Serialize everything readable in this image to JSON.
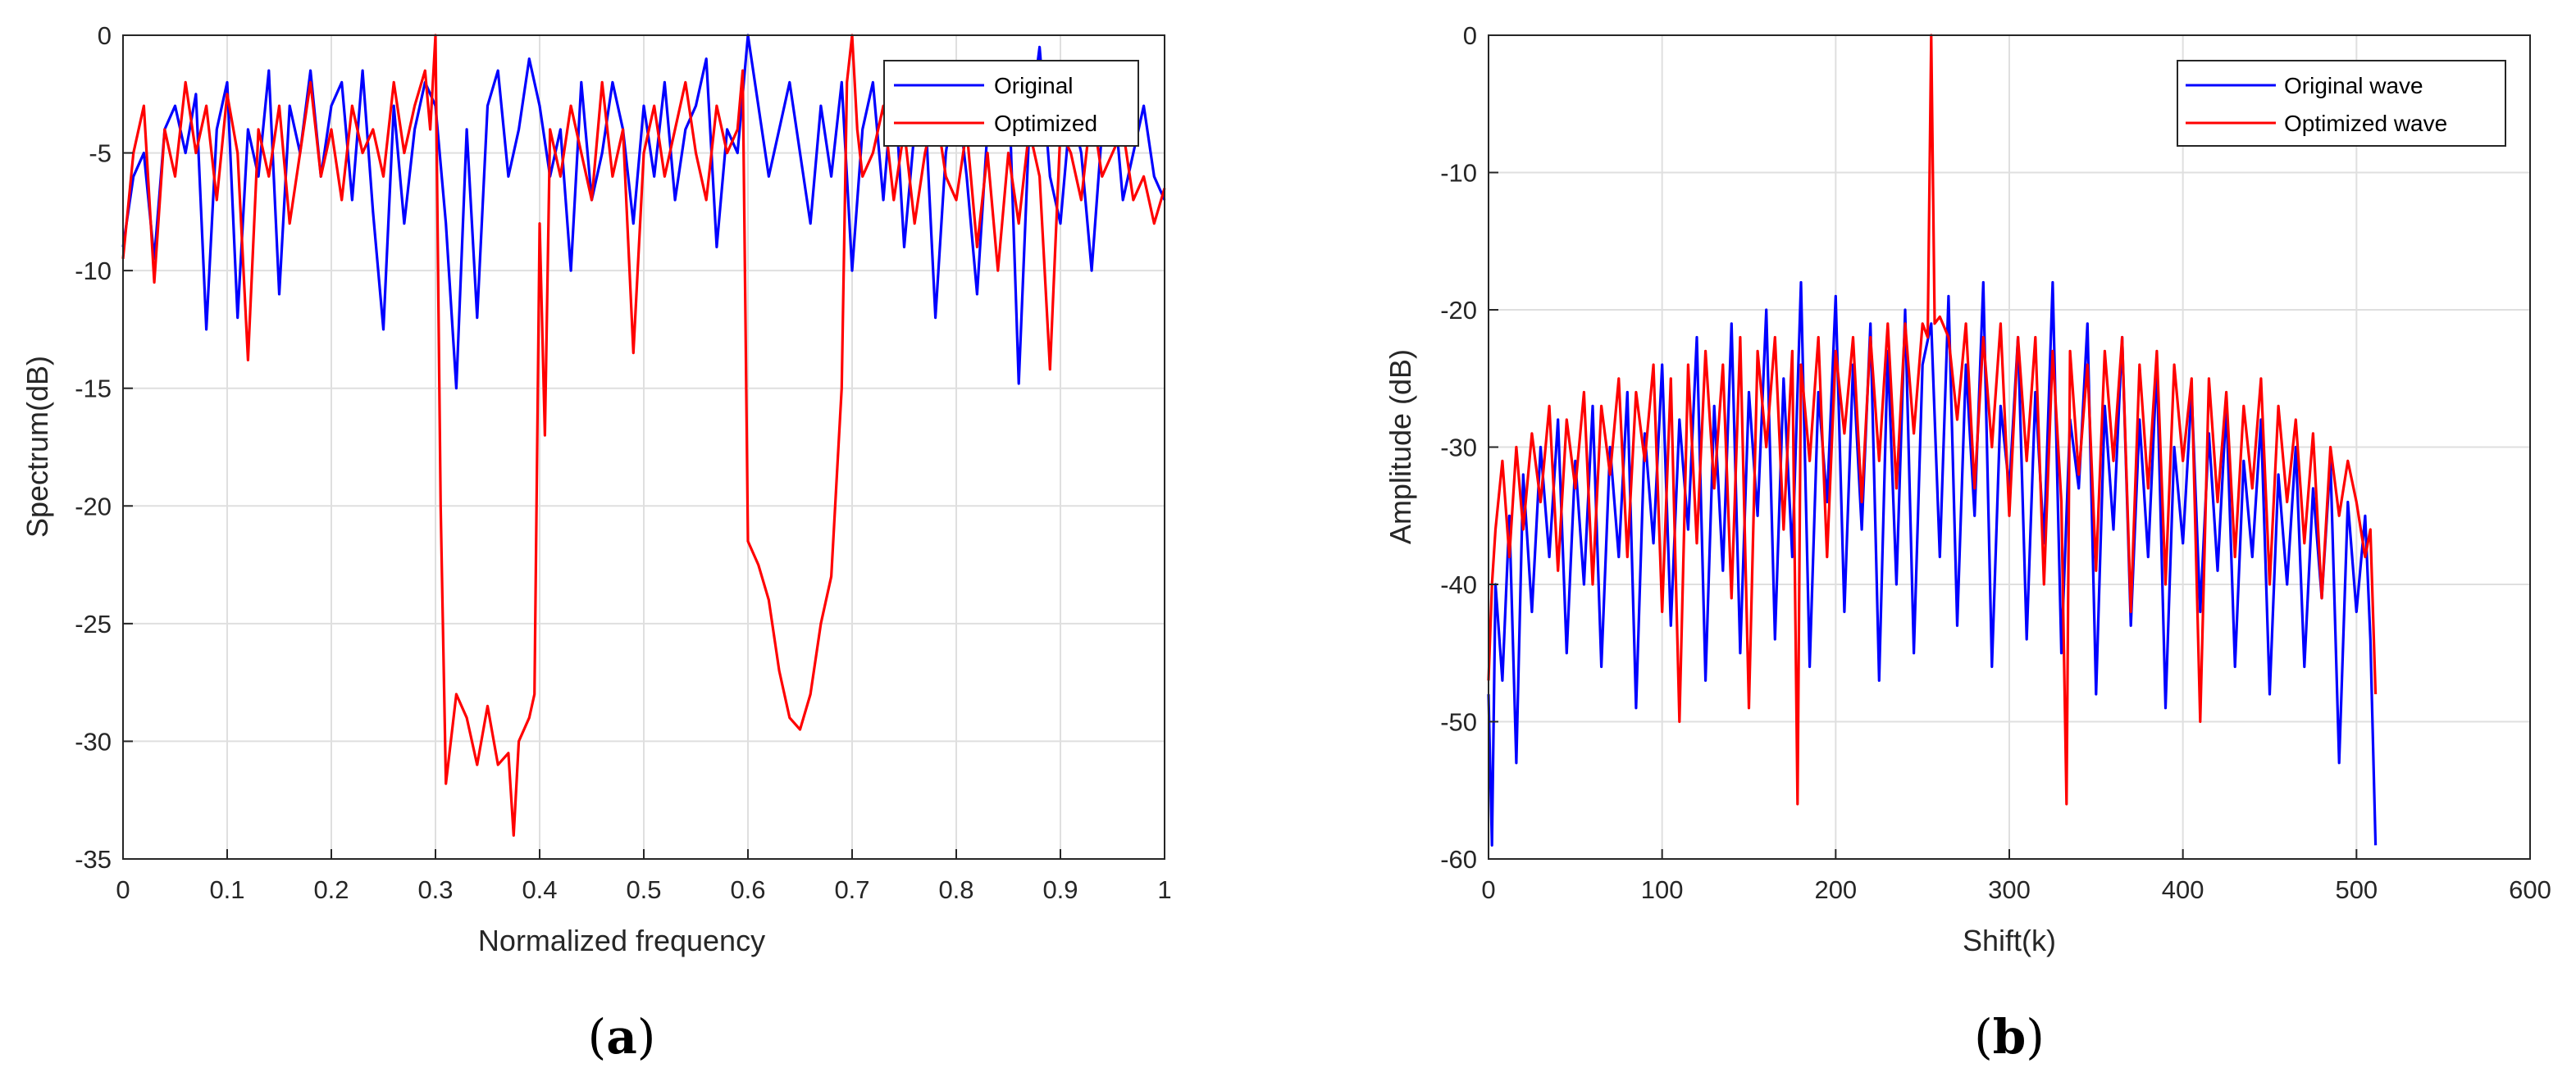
{
  "chart_data": [
    {
      "type": "line",
      "panel_label": "a",
      "caption": {
        "open": "(",
        "letter": "a",
        "close": ")"
      },
      "xlabel": "Normalized frequency",
      "ylabel": "Spectrum(dB)",
      "xlim": [
        0,
        1
      ],
      "ylim": [
        -35,
        0
      ],
      "xticks": [
        0,
        0.1,
        0.2,
        0.3,
        0.4,
        0.5,
        0.6,
        0.7,
        0.8,
        0.9,
        1
      ],
      "xtick_labels": [
        "0",
        "0.1",
        "0.2",
        "0.3",
        "0.4",
        "0.5",
        "0.6",
        "0.7",
        "0.8",
        "0.9",
        "1"
      ],
      "yticks": [
        0,
        -5,
        -10,
        -15,
        -20,
        -25,
        -30,
        -35
      ],
      "ytick_labels": [
        "0",
        "-5",
        "-10",
        "-15",
        "-20",
        "-25",
        "-30",
        "-35"
      ],
      "grid": true,
      "legend": "top-right",
      "series": [
        {
          "name": "Original",
          "color": "#0000ff",
          "x": [
            0,
            0.01,
            0.02,
            0.03,
            0.04,
            0.05,
            0.06,
            0.07,
            0.08,
            0.09,
            0.1,
            0.11,
            0.12,
            0.13,
            0.14,
            0.15,
            0.16,
            0.17,
            0.18,
            0.19,
            0.2,
            0.21,
            0.22,
            0.23,
            0.24,
            0.25,
            0.26,
            0.27,
            0.28,
            0.29,
            0.3,
            0.31,
            0.32,
            0.33,
            0.34,
            0.35,
            0.36,
            0.37,
            0.38,
            0.39,
            0.4,
            0.41,
            0.42,
            0.43,
            0.44,
            0.45,
            0.46,
            0.47,
            0.48,
            0.49,
            0.5,
            0.51,
            0.52,
            0.53,
            0.54,
            0.55,
            0.56,
            0.57,
            0.58,
            0.59,
            0.6,
            0.61,
            0.62,
            0.63,
            0.64,
            0.65,
            0.66,
            0.67,
            0.68,
            0.69,
            0.7,
            0.71,
            0.72,
            0.73,
            0.74,
            0.75,
            0.76,
            0.77,
            0.78,
            0.79,
            0.8,
            0.81,
            0.82,
            0.83,
            0.84,
            0.85,
            0.86,
            0.87,
            0.88,
            0.89,
            0.9,
            0.91,
            0.92,
            0.93,
            0.94,
            0.95,
            0.96,
            0.97,
            0.98,
            0.99,
            1
          ],
          "y": [
            -9,
            -6,
            -5,
            -9.5,
            -4,
            -3,
            -5,
            -2.5,
            -12.5,
            -4,
            -2,
            -12,
            -4,
            -6,
            -1.5,
            -11,
            -3,
            -5,
            -1.5,
            -6,
            -3,
            -2,
            -7,
            -1.5,
            -7.5,
            -12.5,
            -3,
            -8,
            -4,
            -2,
            -3,
            -8,
            -15,
            -4,
            -12,
            -3,
            -1.5,
            -6,
            -4,
            -1,
            -3,
            -6,
            -4,
            -10,
            -2,
            -7,
            -5,
            -2,
            -4,
            -8,
            -3,
            -6,
            -2,
            -7,
            -4,
            -3,
            -1,
            -9,
            -4,
            -5,
            0,
            -3,
            -6,
            -4,
            -2,
            -5,
            -8,
            -3,
            -6,
            -2,
            -10,
            -4,
            -2,
            -7,
            -1.5,
            -9,
            -4,
            -3,
            -12,
            -5,
            -2,
            -6,
            -11,
            -4,
            -3,
            -1.5,
            -14.8,
            -4,
            -0.5,
            -6,
            -8,
            -3,
            -5,
            -10,
            -4,
            -2,
            -7,
            -5,
            -3,
            -6,
            -7
          ]
        },
        {
          "name": "Optimized",
          "color": "#ff0000",
          "x": [
            0,
            0.01,
            0.02,
            0.03,
            0.04,
            0.05,
            0.06,
            0.07,
            0.08,
            0.09,
            0.1,
            0.11,
            0.12,
            0.13,
            0.14,
            0.15,
            0.16,
            0.17,
            0.18,
            0.19,
            0.2,
            0.21,
            0.22,
            0.23,
            0.24,
            0.25,
            0.26,
            0.27,
            0.28,
            0.29,
            0.295,
            0.3,
            0.305,
            0.31,
            0.32,
            0.33,
            0.34,
            0.35,
            0.36,
            0.37,
            0.375,
            0.38,
            0.39,
            0.395,
            0.4,
            0.405,
            0.41,
            0.42,
            0.43,
            0.44,
            0.45,
            0.46,
            0.47,
            0.48,
            0.49,
            0.5,
            0.51,
            0.52,
            0.53,
            0.54,
            0.55,
            0.56,
            0.57,
            0.58,
            0.59,
            0.595,
            0.6,
            0.61,
            0.62,
            0.63,
            0.64,
            0.65,
            0.66,
            0.67,
            0.68,
            0.69,
            0.695,
            0.7,
            0.705,
            0.71,
            0.72,
            0.73,
            0.74,
            0.75,
            0.76,
            0.77,
            0.78,
            0.79,
            0.8,
            0.81,
            0.82,
            0.83,
            0.84,
            0.85,
            0.86,
            0.87,
            0.88,
            0.89,
            0.9,
            0.91,
            0.92,
            0.93,
            0.94,
            0.95,
            0.96,
            0.97,
            0.98,
            0.99,
            1
          ],
          "y": [
            -9.5,
            -5,
            -3,
            -10.5,
            -4,
            -6,
            -2,
            -5,
            -3,
            -7,
            -2.5,
            -5,
            -13.8,
            -4,
            -6,
            -3,
            -8,
            -5,
            -2,
            -6,
            -4,
            -7,
            -3,
            -5,
            -4,
            -6,
            -2,
            -5,
            -3,
            -1.5,
            -4,
            0,
            -20,
            -31.8,
            -28,
            -29,
            -31,
            -28.5,
            -31,
            -30.5,
            -34,
            -30,
            -29,
            -28,
            -8,
            -17,
            -4,
            -6,
            -3,
            -5,
            -7,
            -2,
            -6,
            -4,
            -13.5,
            -5,
            -3,
            -6,
            -4,
            -2,
            -5,
            -7,
            -3,
            -5,
            -4,
            -1.5,
            -21.5,
            -22.5,
            -24,
            -27,
            -29,
            -29.5,
            -28,
            -25,
            -23,
            -15,
            -2,
            0,
            -4,
            -6,
            -5,
            -3,
            -7,
            -4,
            -8,
            -5,
            -3,
            -6,
            -7,
            -4,
            -9,
            -5,
            -10,
            -5,
            -8,
            -4,
            -6,
            -14.2,
            -4,
            -5,
            -7,
            -3,
            -6,
            -5,
            -4,
            -7,
            -6,
            -8,
            -6.5
          ]
        }
      ]
    },
    {
      "type": "line",
      "panel_label": "b",
      "caption": {
        "open": "(",
        "letter": "b",
        "close": ")"
      },
      "xlabel": "Shift(k)",
      "ylabel": "Amplitude (dB)",
      "xlim": [
        0,
        600
      ],
      "ylim": [
        -60,
        0
      ],
      "xticks": [
        0,
        100,
        200,
        300,
        400,
        500,
        600
      ],
      "xtick_labels": [
        "0",
        "100",
        "200",
        "300",
        "400",
        "500",
        "600"
      ],
      "yticks": [
        0,
        -10,
        -20,
        -30,
        -40,
        -50,
        -60
      ],
      "ytick_labels": [
        "0",
        "-10",
        "-20",
        "-30",
        "-40",
        "-50",
        "-60"
      ],
      "grid": true,
      "legend": "top-right",
      "series": [
        {
          "name": "Original wave",
          "color": "#0000ff",
          "x": [
            0,
            2,
            4,
            8,
            12,
            16,
            20,
            25,
            30,
            35,
            40,
            45,
            50,
            55,
            60,
            65,
            70,
            75,
            80,
            85,
            90,
            95,
            100,
            105,
            110,
            115,
            120,
            125,
            130,
            135,
            140,
            145,
            150,
            155,
            160,
            165,
            170,
            175,
            180,
            185,
            190,
            195,
            200,
            205,
            210,
            215,
            220,
            225,
            230,
            235,
            240,
            245,
            250,
            255,
            260,
            265,
            270,
            275,
            280,
            285,
            290,
            295,
            300,
            305,
            310,
            315,
            320,
            325,
            330,
            335,
            340,
            345,
            350,
            355,
            360,
            365,
            370,
            375,
            380,
            385,
            390,
            395,
            400,
            405,
            410,
            415,
            420,
            425,
            430,
            435,
            440,
            445,
            450,
            455,
            460,
            465,
            470,
            475,
            480,
            485,
            490,
            495,
            500,
            505,
            508,
            511
          ],
          "y": [
            -48,
            -59,
            -40,
            -47,
            -35,
            -53,
            -32,
            -42,
            -30,
            -38,
            -28,
            -45,
            -31,
            -40,
            -27,
            -46,
            -30,
            -38,
            -26,
            -49,
            -29,
            -37,
            -24,
            -43,
            -28,
            -36,
            -22,
            -47,
            -27,
            -39,
            -21,
            -45,
            -26,
            -35,
            -20,
            -44,
            -25,
            -38,
            -18,
            -46,
            -26,
            -34,
            -19,
            -42,
            -24,
            -36,
            -21,
            -47,
            -23,
            -40,
            -20,
            -45,
            -24,
            -21,
            -38,
            -19,
            -43,
            -24,
            -35,
            -18,
            -46,
            -27,
            -33,
            -22,
            -44,
            -26,
            -37,
            -18,
            -45,
            -28,
            -33,
            -21,
            -48,
            -27,
            -36,
            -22,
            -43,
            -28,
            -38,
            -24,
            -49,
            -30,
            -37,
            -26,
            -42,
            -29,
            -39,
            -27,
            -46,
            -31,
            -38,
            -28,
            -48,
            -32,
            -40,
            -30,
            -46,
            -33,
            -41,
            -31,
            -53,
            -34,
            -42,
            -35,
            -44,
            -59
          ]
        },
        {
          "name": "Optimized wave",
          "color": "#ff0000",
          "x": [
            0,
            2,
            4,
            8,
            12,
            16,
            20,
            25,
            30,
            35,
            40,
            45,
            50,
            55,
            60,
            65,
            70,
            75,
            80,
            85,
            90,
            95,
            100,
            105,
            110,
            115,
            120,
            125,
            130,
            135,
            140,
            145,
            150,
            155,
            160,
            165,
            170,
            175,
            178,
            180,
            185,
            190,
            195,
            200,
            205,
            210,
            215,
            220,
            225,
            230,
            235,
            240,
            245,
            250,
            253,
            255,
            257,
            260,
            265,
            270,
            275,
            280,
            285,
            290,
            295,
            300,
            305,
            310,
            315,
            320,
            325,
            330,
            333,
            335,
            340,
            345,
            350,
            355,
            360,
            365,
            370,
            375,
            380,
            385,
            390,
            395,
            400,
            405,
            410,
            415,
            420,
            425,
            430,
            435,
            440,
            445,
            450,
            455,
            460,
            465,
            470,
            475,
            480,
            485,
            490,
            495,
            500,
            505,
            508,
            511
          ],
          "y": [
            -47,
            -40,
            -36,
            -31,
            -38,
            -30,
            -36,
            -29,
            -34,
            -27,
            -39,
            -28,
            -33,
            -26,
            -40,
            -27,
            -32,
            -25,
            -38,
            -26,
            -31,
            -24,
            -42,
            -25,
            -50,
            -24,
            -37,
            -23,
            -33,
            -24,
            -41,
            -22,
            -49,
            -23,
            -30,
            -22,
            -36,
            -23,
            -56,
            -24,
            -31,
            -22,
            -38,
            -23,
            -29,
            -22,
            -34,
            -22,
            -31,
            -21,
            -33,
            -21,
            -29,
            -21,
            -22,
            0,
            -21,
            -20.5,
            -22,
            -28,
            -21,
            -33,
            -22,
            -30,
            -21,
            -35,
            -22,
            -31,
            -22,
            -40,
            -23,
            -34,
            -56,
            -23,
            -32,
            -24,
            -39,
            -23,
            -31,
            -22,
            -42,
            -24,
            -33,
            -23,
            -40,
            -24,
            -31,
            -25,
            -50,
            -25,
            -34,
            -26,
            -38,
            -27,
            -33,
            -25,
            -40,
            -27,
            -34,
            -28,
            -37,
            -29,
            -41,
            -30,
            -35,
            -31,
            -34,
            -38,
            -36,
            -48
          ]
        }
      ]
    }
  ]
}
